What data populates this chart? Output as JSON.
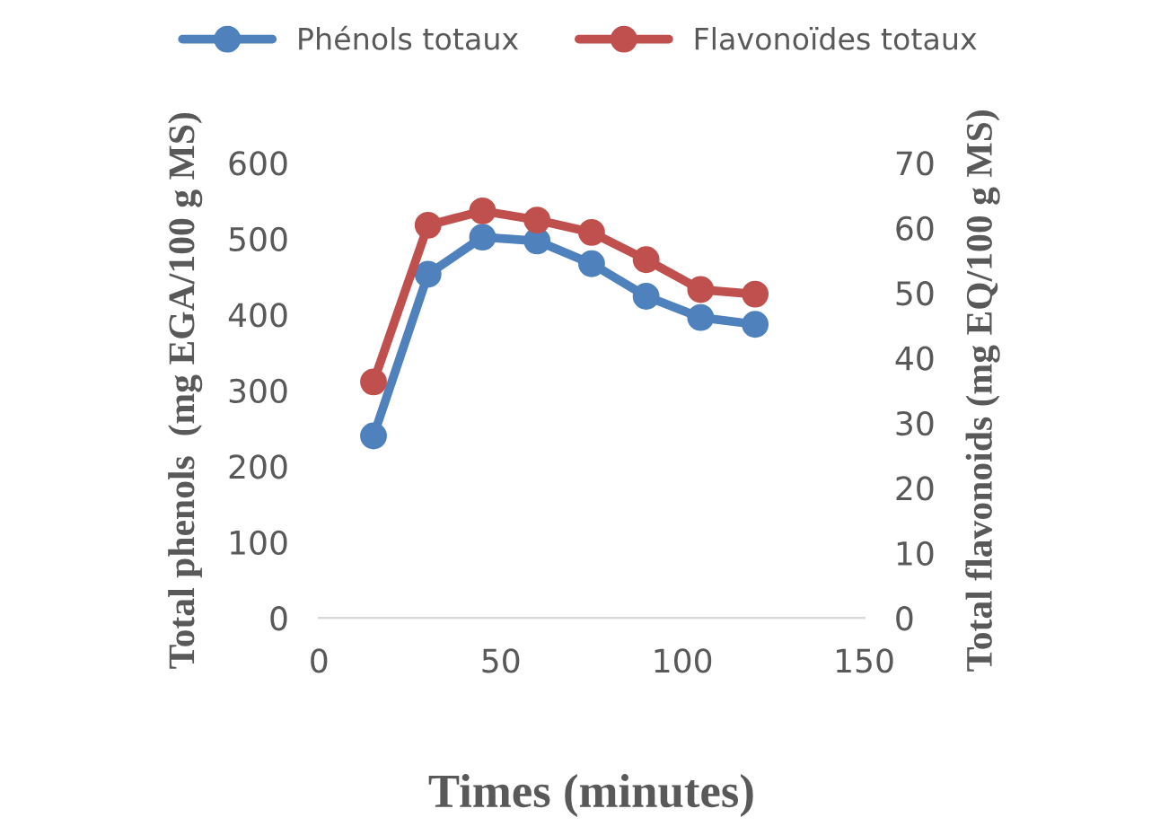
{
  "chart_data": {
    "type": "line",
    "xlabel": "Times (minutes)",
    "ylabel": "Total phenols  (mg EGA/100 g MS)",
    "y2label": "Total flavonoids (mg EQ/100 g MS)",
    "x": [
      15,
      30,
      45,
      60,
      75,
      90,
      105,
      120
    ],
    "series": [
      {
        "name": "Phénols totaux",
        "color": "#4f81bd",
        "values": [
          240,
          453,
          502,
          497,
          467,
          424,
          396,
          387
        ]
      },
      {
        "name": "Flavonoïdes totaux",
        "color": "#c0504d",
        "axis": "y2",
        "values": [
          36.3,
          60.4,
          62.6,
          61.2,
          59.3,
          55.1,
          50.5,
          49.8
        ]
      }
    ],
    "xlim": [
      0,
      150
    ],
    "xticks": [
      0,
      50,
      100,
      150
    ],
    "ylim": [
      0,
      600
    ],
    "yticks": [
      0,
      100,
      200,
      300,
      400,
      500,
      600
    ],
    "y2lim": [
      0,
      70
    ],
    "y2ticks": [
      0,
      10,
      20,
      30,
      40,
      50,
      60,
      70
    ],
    "grid": false,
    "legend": "top",
    "marker": "circle",
    "line_style": "solid"
  }
}
